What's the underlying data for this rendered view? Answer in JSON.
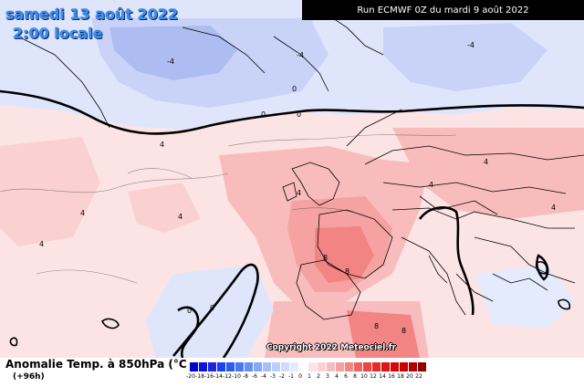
{
  "header": {
    "date_line": "samedi 13 août 2022",
    "time_line": "2:00 locale",
    "run_info": "Run ECMWF 0Z du mardi 9 août 2022"
  },
  "footer": {
    "parameter": "Anomalie Temp. à 850hPa (°C",
    "lead_time": "(+96h)",
    "copyright": "Copyright 2022 Meteociel.fr"
  },
  "legend": {
    "steps": [
      {
        "label": "-20",
        "color": "#0000cc"
      },
      {
        "label": "-18",
        "color": "#0a14d6"
      },
      {
        "label": "-16",
        "color": "#1428e0"
      },
      {
        "label": "-14",
        "color": "#1e40ea"
      },
      {
        "label": "-12",
        "color": "#2d5af0"
      },
      {
        "label": "-10",
        "color": "#4676f2"
      },
      {
        "label": "-8",
        "color": "#6490f4"
      },
      {
        "label": "-6",
        "color": "#84a8f6"
      },
      {
        "label": "-4",
        "color": "#a4c0f8"
      },
      {
        "label": "-3",
        "color": "#bccffa"
      },
      {
        "label": "-2",
        "color": "#d0dcfb"
      },
      {
        "label": "-1",
        "color": "#e4ebfc"
      },
      {
        "label": "0",
        "color": "#ffffff"
      },
      {
        "label": "1",
        "color": "#fde4e4"
      },
      {
        "label": "2",
        "color": "#fbd0d0"
      },
      {
        "label": "3",
        "color": "#f9bcbc"
      },
      {
        "label": "4",
        "color": "#f6a2a2"
      },
      {
        "label": "6",
        "color": "#f28484"
      },
      {
        "label": "8",
        "color": "#ee6464"
      },
      {
        "label": "10",
        "color": "#ea4646"
      },
      {
        "label": "12",
        "color": "#e52a2a"
      },
      {
        "label": "14",
        "color": "#e01414"
      },
      {
        "label": "16",
        "color": "#d60808"
      },
      {
        "label": "18",
        "color": "#c80000"
      },
      {
        "label": "20",
        "color": "#b00000"
      },
      {
        "label": "22",
        "color": "#900000"
      }
    ]
  },
  "contour_labels": [
    "0",
    "0",
    "0",
    "0",
    "0",
    "4",
    "4",
    "4",
    "4",
    "4",
    "4",
    "4",
    "4",
    "8",
    "8",
    "8",
    "8",
    "-4",
    "-4",
    "-4"
  ],
  "colors": {
    "warm_light": "#fbd0d0",
    "warm_mid": "#f6a2a2",
    "warm_strong": "#ee6464",
    "cool_light": "#dfe6fb",
    "cool_mid": "#b9c7f4",
    "cool_strong": "#95a6ec",
    "land_border": "#000000"
  }
}
